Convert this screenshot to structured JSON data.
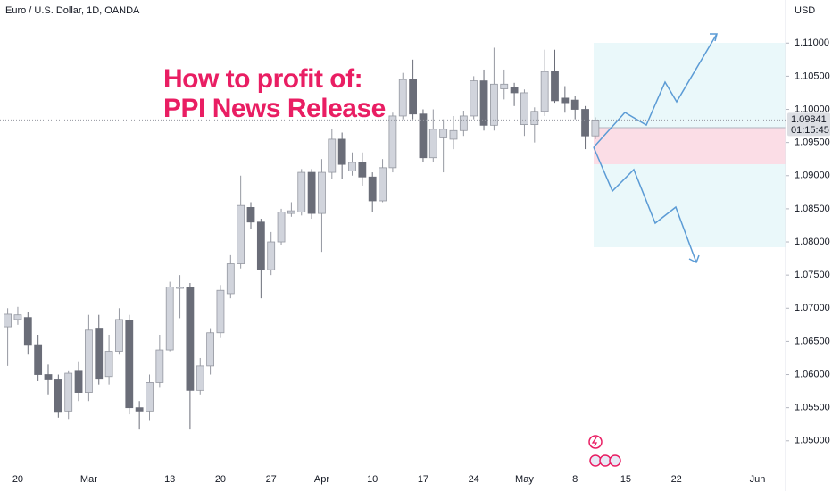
{
  "chart_data": {
    "type": "candlestick",
    "title": "Euro / U.S. Dollar, 1D, OANDA",
    "currency": "USD",
    "annotation": [
      "How to profit of:",
      "PPI News Release"
    ],
    "categories": [
      null,
      "20",
      null,
      null,
      null,
      null,
      null,
      null,
      "Mar",
      null,
      null,
      null,
      null,
      null,
      null,
      null,
      "13",
      null,
      null,
      null,
      null,
      "20",
      null,
      null,
      null,
      null,
      "27",
      null,
      null,
      null,
      null,
      "Apr",
      null,
      null,
      null,
      null,
      "10",
      null,
      null,
      null,
      null,
      "17",
      null,
      null,
      null,
      null,
      "24",
      null,
      null,
      null,
      null,
      "May",
      null,
      null,
      null,
      null,
      "8",
      null,
      null,
      null,
      null,
      "15",
      null,
      null,
      null,
      null,
      "22",
      null,
      null,
      null,
      null,
      null,
      null,
      null,
      "Jun",
      null,
      null
    ],
    "open": [
      1.0672,
      1.0683,
      1.0686,
      1.0645,
      1.06,
      1.0592,
      1.0545,
      1.0605,
      1.0573,
      1.067,
      1.0597,
      1.0635,
      1.0682,
      1.055,
      1.0545,
      1.0588,
      1.0637,
      1.073,
      1.0732,
      1.0576,
      1.0613,
      1.0663,
      1.0722,
      1.0767,
      1.0852,
      1.083,
      1.0758,
      1.08,
      1.0843,
      1.0845,
      1.0905,
      1.0843,
      1.0905,
      1.0955,
      1.0907,
      1.092,
      1.0898,
      1.0862,
      1.0912,
      1.099,
      1.1045,
      1.0993,
      1.0927,
      1.0957,
      1.0955,
      1.0968,
      1.099,
      1.1043,
      1.0976,
      1.1031,
      1.1033,
      1.0977,
      1.0977,
      1.0997,
      1.1057,
      1.1017,
      1.1014,
      1.1,
      1.096,
      null,
      null,
      null,
      null,
      null,
      null,
      null,
      null,
      null,
      null,
      null,
      null,
      null,
      null,
      null,
      null,
      null,
      null
    ],
    "high": [
      1.07,
      1.0702,
      1.0695,
      1.066,
      1.0615,
      1.06,
      1.0605,
      1.062,
      1.069,
      1.069,
      1.066,
      1.07,
      1.069,
      1.056,
      1.06,
      1.066,
      1.074,
      1.075,
      1.0738,
      1.0625,
      1.067,
      1.0735,
      1.078,
      1.09,
      1.086,
      1.0835,
      1.0815,
      1.085,
      1.086,
      1.091,
      1.091,
      1.0925,
      1.097,
      1.0965,
      1.0935,
      1.0935,
      1.0905,
      1.0925,
      1.0995,
      1.1055,
      1.1075,
      1.1,
      1.1,
      1.0985,
      1.099,
      1.0998,
      1.105,
      1.106,
      1.1093,
      1.106,
      1.104,
      1.103,
      1.1003,
      1.109,
      1.109,
      1.1035,
      1.102,
      1.1005,
      1.0988,
      null,
      null,
      null,
      null,
      null,
      null,
      null,
      null,
      null,
      null,
      null,
      null,
      null,
      null,
      null,
      null,
      null,
      null
    ],
    "low": [
      1.0613,
      1.0675,
      1.063,
      1.059,
      1.057,
      1.0535,
      1.0533,
      1.056,
      1.056,
      1.0585,
      1.0585,
      1.063,
      1.054,
      1.0517,
      1.053,
      1.058,
      1.0635,
      1.0685,
      1.0517,
      1.057,
      1.06,
      1.0655,
      1.0715,
      1.076,
      1.082,
      1.0715,
      1.075,
      1.0795,
      1.0838,
      1.084,
      1.0835,
      1.0785,
      1.0895,
      1.0895,
      1.09,
      1.0885,
      1.0845,
      1.086,
      1.0905,
      1.0985,
      1.0985,
      1.092,
      1.092,
      1.0905,
      1.094,
      1.096,
      1.0985,
      1.0968,
      1.0968,
      1.1015,
      1.1005,
      1.096,
      1.095,
      1.099,
      1.101,
      1.0995,
      1.0985,
      1.094,
      1.0955,
      null,
      null,
      null,
      null,
      null,
      null,
      null,
      null,
      null,
      null,
      null,
      null,
      null,
      null,
      null,
      null,
      null,
      null
    ],
    "close": [
      1.0691,
      1.069,
      1.0644,
      1.06,
      1.0592,
      1.0543,
      1.0602,
      1.0573,
      1.0667,
      1.0593,
      1.0635,
      1.0683,
      1.055,
      1.0545,
      1.0588,
      1.0637,
      1.0732,
      1.0732,
      1.0576,
      1.0613,
      1.0663,
      1.0727,
      1.0767,
      1.0855,
      1.083,
      1.0758,
      1.08,
      1.0845,
      1.0847,
      1.0905,
      1.0843,
      1.0905,
      1.0955,
      1.0917,
      1.092,
      1.0898,
      1.0862,
      1.0912,
      1.099,
      1.1045,
      1.0993,
      1.0927,
      1.097,
      1.097,
      1.0968,
      1.099,
      1.1043,
      1.0976,
      1.1038,
      1.1038,
      1.1025,
      1.1025,
      1.0997,
      1.1057,
      1.1013,
      1.101,
      1.1,
      1.096,
      1.0984,
      null,
      null,
      null,
      null,
      null,
      null,
      null,
      null,
      null,
      null,
      null,
      null,
      null,
      null,
      null,
      null,
      null,
      null
    ],
    "up_color": "#d1d4dc",
    "down_color": "#6a6d78",
    "ylim": [
      1.0462,
      1.1165
    ],
    "yticks": [
      {
        "value": 1.05,
        "label": "1.05000"
      },
      {
        "value": 1.055,
        "label": "1.05500"
      },
      {
        "value": 1.06,
        "label": "1.06000"
      },
      {
        "value": 1.065,
        "label": "1.06500"
      },
      {
        "value": 1.07,
        "label": "1.07000"
      },
      {
        "value": 1.075,
        "label": "1.07500"
      },
      {
        "value": 1.08,
        "label": "1.08000"
      },
      {
        "value": 1.085,
        "label": "1.08500"
      },
      {
        "value": 1.09,
        "label": "1.09000"
      },
      {
        "value": 1.095,
        "label": "1.09500"
      },
      {
        "value": 1.1,
        "label": "1.10000"
      },
      {
        "value": 1.105,
        "label": "1.10500"
      },
      {
        "value": 1.11,
        "label": "1.11000"
      }
    ],
    "grid": false,
    "last_price": 1.09841,
    "countdown": "01:15:45"
  }
}
